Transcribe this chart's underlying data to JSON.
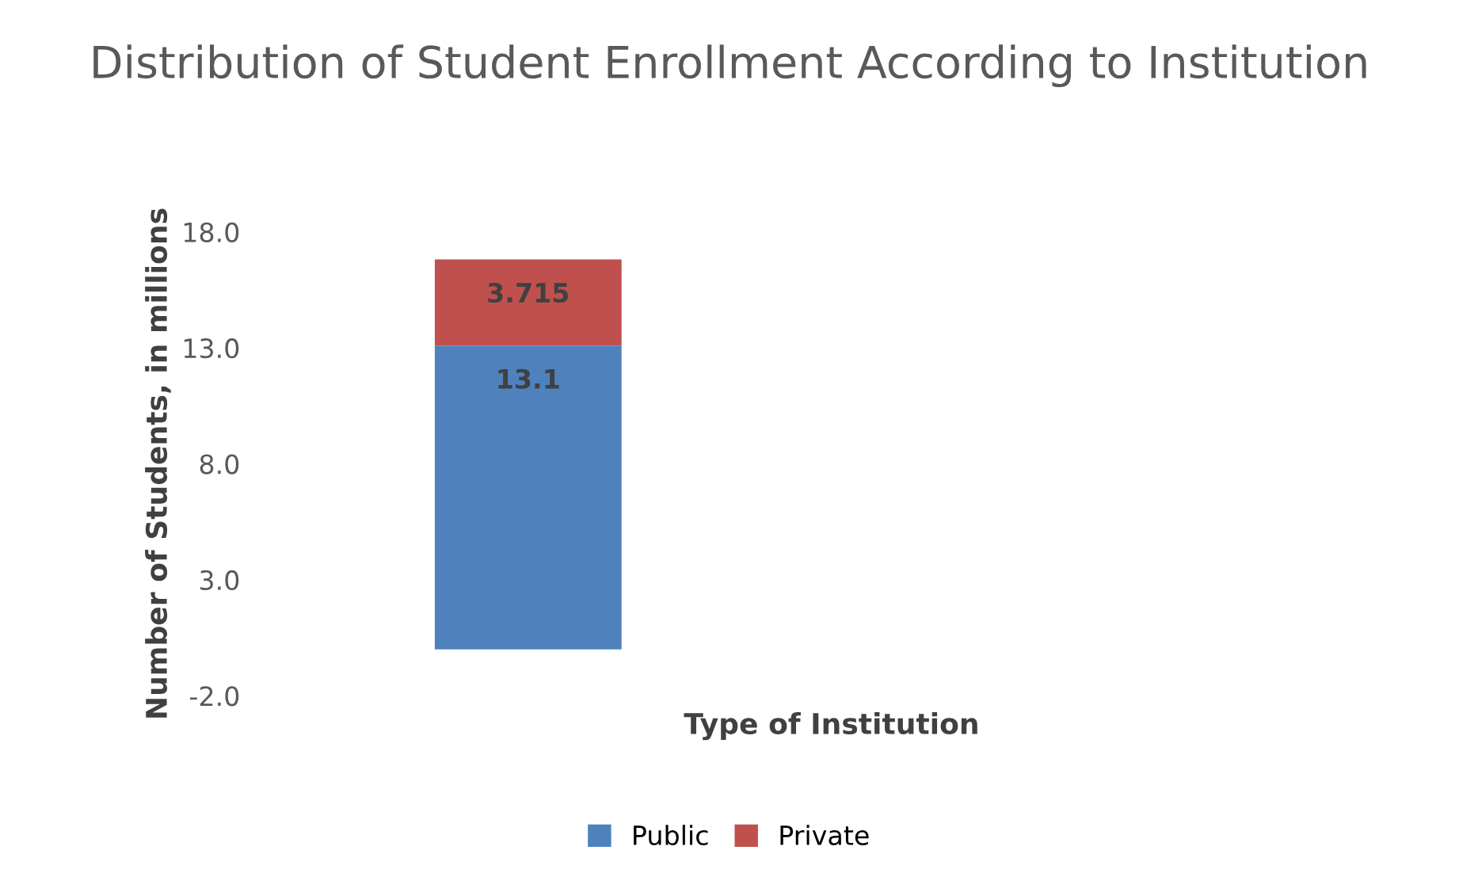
{
  "chart_data": {
    "type": "bar",
    "title": "Distribution of Student Enrollment According to Institution",
    "xlabel": "Type of Institution",
    "ylabel": "Number of Students, in millions",
    "categories": [
      null
    ],
    "stacked": true,
    "series": [
      {
        "name": "Public",
        "color": "#4f81bd",
        "values": [
          13.1
        ]
      },
      {
        "name": "Private",
        "color": "#c0504d",
        "values": [
          3.715
        ]
      }
    ],
    "data_labels": true,
    "ylim": [
      -2,
      18
    ],
    "yticks": [
      {
        "value": -2,
        "label": "-2.0"
      },
      {
        "value": 3,
        "label": "3.0"
      },
      {
        "value": 8,
        "label": "8.0"
      },
      {
        "value": 13,
        "label": "13.0"
      },
      {
        "value": 18,
        "label": "18.0"
      }
    ],
    "grid": false,
    "legend": "bottom"
  }
}
